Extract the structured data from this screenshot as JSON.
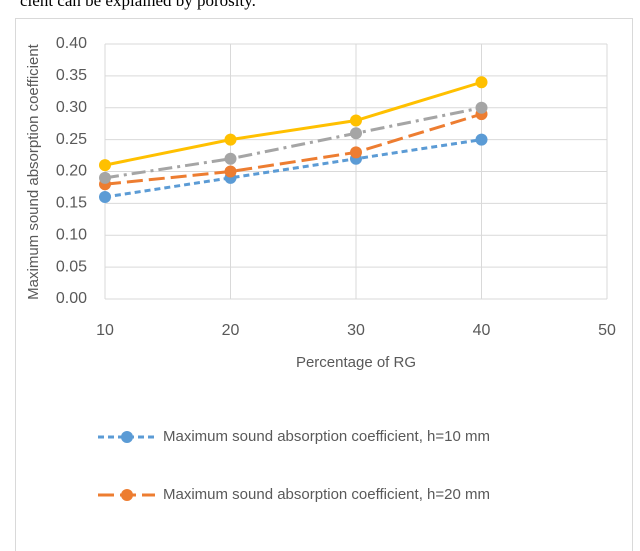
{
  "text_above": "cient can be explained by porosity.",
  "chart_data": {
    "type": "line",
    "y_label": "Maximum sound absorption coefficient",
    "x_label": "Percentage of RG",
    "x": [
      10,
      20,
      30,
      40
    ],
    "xlim": [
      10,
      50
    ],
    "xticks": [
      10,
      20,
      30,
      40,
      50
    ],
    "ylim": [
      0,
      0.4
    ],
    "yticks": [
      {
        "value": 0,
        "label": "0.00"
      },
      0.05,
      {
        "value": 0.1,
        "label": "0.10"
      },
      0.15,
      {
        "value": 0.2,
        "label": "0.20"
      },
      0.25,
      {
        "value": 0.3,
        "label": "0.30"
      },
      0.35,
      {
        "value": 0.4,
        "label": "0.40"
      }
    ],
    "grid": true,
    "series": [
      {
        "name": "Maximum sound absorption coefficient, h=10 mm",
        "color": "#5b9bd5",
        "dash": "short-dash",
        "values": [
          0.16,
          0.19,
          0.22,
          0.25
        ]
      },
      {
        "name": "Maximum sound absorption coefficient, h=20 mm",
        "color": "#ed7d31",
        "dash": "long-dash",
        "values": [
          0.18,
          0.2,
          0.23,
          0.29
        ]
      },
      {
        "color": "#a5a5a5",
        "dash": "dash-dot",
        "values": [
          0.19,
          0.22,
          0.26,
          0.3
        ]
      },
      {
        "color": "#ffc000",
        "dash": "solid",
        "values": [
          0.21,
          0.25,
          0.28,
          0.34
        ]
      }
    ]
  }
}
